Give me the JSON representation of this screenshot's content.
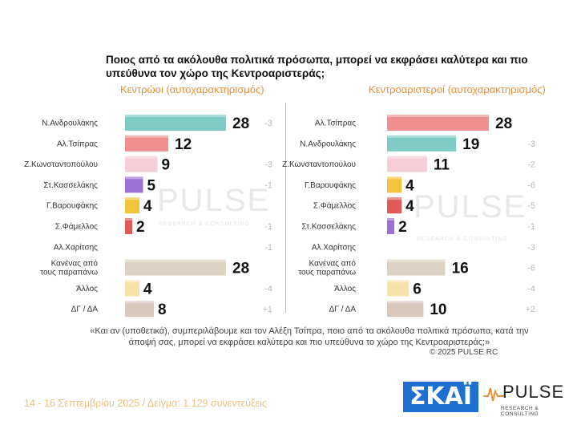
{
  "title": "Ποιος από τα ακόλουθα πολιτικά πρόσωπα, μπορεί να εκφράσει καλύτερα και πιο υπεύθυνα τον χώρο της Κεντροαριστεράς;",
  "watermark": "PULSE",
  "watermark_sub": "RESEARCH & CONSULTING",
  "chart_data": [
    {
      "type": "bar",
      "subtitle": "Κεντρώοι (αυτοχαρακτηρισμός)",
      "categories": [
        "Ν.Ανδρουλάκης",
        "Αλ.Τσίπρας",
        "Ζ.Κωνσταντοπούλου",
        "Στ.Κασσελάκης",
        "Γ.Βαρουφάκης",
        "Σ.Φάμελλος",
        "Αλ.Χαρίτσης",
        "Κανένας από|τους παραπάνω",
        "Άλλος",
        "ΔΓ / ΔΑ"
      ],
      "values": [
        28,
        12,
        9,
        5,
        4,
        2,
        null,
        28,
        4,
        8
      ],
      "changes": [
        "-3",
        "",
        "-3",
        "-1",
        "",
        "-1",
        "-1",
        "",
        "-4",
        "+1"
      ],
      "colors": [
        "#7ecbc4",
        "#f08f8f",
        "#f4cdd6",
        "#9b6fd6",
        "#f2c43c",
        "#e05a5a",
        "#dddddd",
        "#ddd3c4",
        "#f6e2a8",
        "#d9c9bd"
      ],
      "xlim": [
        0,
        28
      ]
    },
    {
      "type": "bar",
      "subtitle": "Κεντροαριστεροί (αυτοχαρακτηρισμός)",
      "categories": [
        "Αλ.Τσίπρας",
        "Ν.Ανδρουλάκης",
        "Ζ.Κωνσταντοπούλου",
        "Γ.Βαρουφάκης",
        "Σ.Φάμελλος",
        "Στ.Κασσελάκης",
        "Αλ.Χαρίτσης",
        "Κανένας από|τους παραπάνω",
        "Άλλος",
        "ΔΓ / ΔΑ"
      ],
      "values": [
        28,
        19,
        11,
        4,
        4,
        2,
        null,
        16,
        6,
        10
      ],
      "changes": [
        "",
        "-3",
        "-2",
        "-6",
        "-5",
        "-1",
        "-3",
        "-6",
        "-4",
        "+2"
      ],
      "colors": [
        "#f08f8f",
        "#7ecbc4",
        "#f4cdd6",
        "#f2c43c",
        "#e05a5a",
        "#9b6fd6",
        "#dddddd",
        "#ddd3c4",
        "#f6e2a8",
        "#d9c9bd"
      ],
      "xlim": [
        0,
        28
      ]
    }
  ],
  "footnote": "«Και αν (υποθετικά), συμπεριλάβουμε και τον Αλέξη Τσίπρα, ποιο από τα ακόλουθα πολιτικά πρόσωπα, κατά την άποψή σας, μπορεί να εκφράσει καλύτερα και πιο υπεύθυνα το χώρο της Κεντροαριστεράς;»",
  "copyright": "© 2025 PULSE RC",
  "fieldwork": "14 - 16 Σεπτεμβρίου 2025  /  Δείγμα:  1.129 συνεντεύξεις",
  "logos": {
    "skai": "ΣΚΑΪ",
    "pulse": "PULSE",
    "pulse_sub": "RESEARCH & CONSULTING"
  }
}
